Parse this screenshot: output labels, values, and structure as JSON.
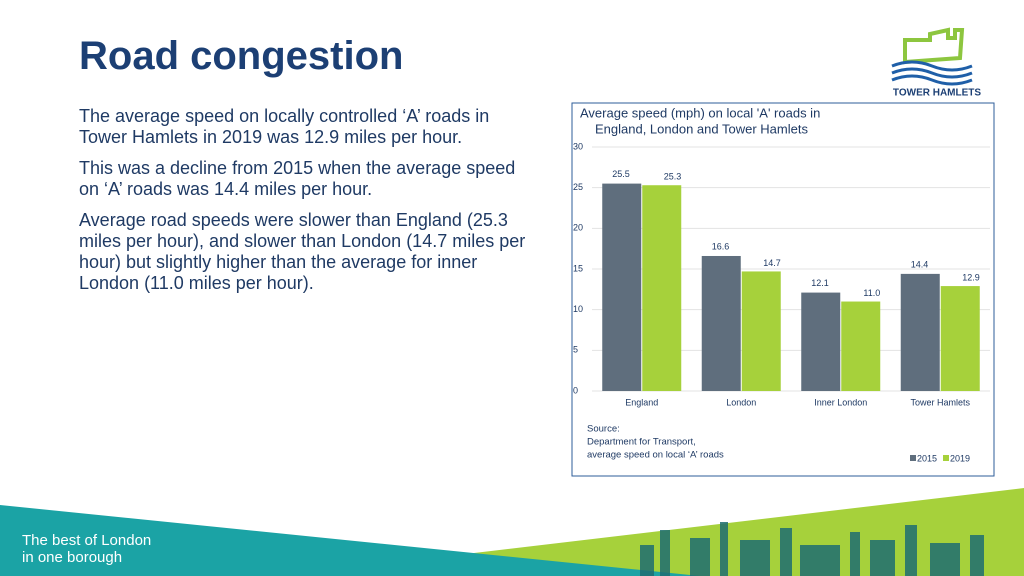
{
  "title": "Road congestion",
  "paragraphs": [
    "The average speed on locally controlled ‘A’ roads in Tower Hamlets in 2019 was 12.9 miles per hour.",
    "This was a decline from 2015 when the average speed on ‘A’ roads was 14.4 miles per hour.",
    "Average road speeds were slower than England (25.3 miles per hour), and slower than London (14.7 miles per hour) but slightly higher than the average for inner London (11.0 miles per hour)."
  ],
  "logo_text": "TOWER HAMLETS",
  "footer": [
    "The best of London",
    "in one borough"
  ],
  "chart_data": {
    "type": "bar",
    "title": [
      "Average speed (mph) on local 'A' roads in",
      "England, London and Tower Hamlets"
    ],
    "categories": [
      "England",
      "London",
      "Inner London",
      "Tower Hamlets"
    ],
    "series": [
      {
        "name": "2015",
        "color": "#5f6e7d",
        "values": [
          25.5,
          16.6,
          12.1,
          14.4
        ]
      },
      {
        "name": "2019",
        "color": "#a6d13b",
        "values": [
          25.3,
          14.7,
          11.0,
          12.9
        ],
        "value_labels": [
          "25.3",
          "14.7",
          "11.0",
          "12.9"
        ]
      }
    ],
    "ylim": [
      0,
      30
    ],
    "yticks": [
      0,
      5,
      10,
      15,
      20,
      25,
      30
    ],
    "grid": true,
    "legend": "bottom-right",
    "source": [
      "Source:",
      "Department for Transport,",
      "average speed on local ‘A’ roads"
    ]
  }
}
